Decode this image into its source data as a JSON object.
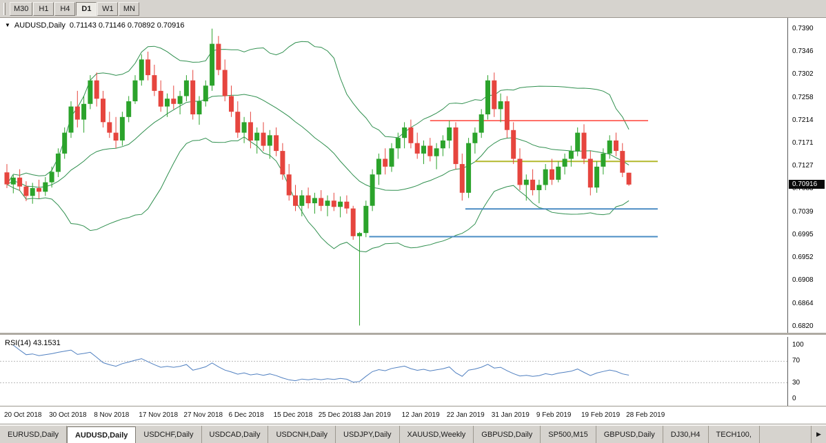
{
  "toolbar": {
    "timeframes": [
      {
        "label": "M30",
        "active": false
      },
      {
        "label": "H1",
        "active": false
      },
      {
        "label": "H4",
        "active": false
      },
      {
        "label": "D1",
        "active": true
      },
      {
        "label": "W1",
        "active": false
      },
      {
        "label": "MN",
        "active": false
      }
    ]
  },
  "chart": {
    "title": "AUDUSD,Daily",
    "ohlc": "0.71143 0.71146 0.70892 0.70916",
    "current_price": "0.70916",
    "price_axis_labels": [
      "0.7390",
      "0.7346",
      "0.7302",
      "0.7258",
      "0.7214",
      "0.7171",
      "0.7127",
      "0.7083",
      "0.7039",
      "0.6995",
      "0.6952",
      "0.6908",
      "0.6864",
      "0.6820"
    ],
    "colors": {
      "up": "#2ba32b",
      "down": "#e6453e",
      "band": "#2f8f4e",
      "red_line": "#ff4036",
      "olive_line": "#b3b82b",
      "blue_line": "#4a8cc4",
      "rsi": "#4f7fc0"
    }
  },
  "chart_data": {
    "type": "candlestick",
    "symbol": "AUDUSD",
    "timeframe": "Daily",
    "y_range": [
      0.682,
      0.74
    ],
    "bollinger": {
      "period": 20,
      "deviation": 2
    },
    "ohlc": [
      [
        0.7115,
        0.7131,
        0.7085,
        0.7092
      ],
      [
        0.7092,
        0.711,
        0.7075,
        0.7105
      ],
      [
        0.7105,
        0.7121,
        0.708,
        0.7088
      ],
      [
        0.7088,
        0.7098,
        0.706,
        0.707
      ],
      [
        0.707,
        0.7095,
        0.7055,
        0.7085
      ],
      [
        0.7085,
        0.7101,
        0.7065,
        0.7078
      ],
      [
        0.7078,
        0.7106,
        0.707,
        0.7096
      ],
      [
        0.7096,
        0.7126,
        0.7086,
        0.7116
      ],
      [
        0.7116,
        0.7161,
        0.7106,
        0.7151
      ],
      [
        0.7151,
        0.7201,
        0.7141,
        0.7191
      ],
      [
        0.7191,
        0.7251,
        0.7181,
        0.7241
      ],
      [
        0.7241,
        0.7271,
        0.7201,
        0.7216
      ],
      [
        0.7216,
        0.7261,
        0.7191,
        0.7246
      ],
      [
        0.7246,
        0.7301,
        0.7236,
        0.7291
      ],
      [
        0.7291,
        0.7306,
        0.7241,
        0.7256
      ],
      [
        0.7256,
        0.7271,
        0.7201,
        0.7211
      ],
      [
        0.7211,
        0.7231,
        0.7181,
        0.7191
      ],
      [
        0.7191,
        0.7221,
        0.7161,
        0.7176
      ],
      [
        0.7176,
        0.7231,
        0.7166,
        0.7221
      ],
      [
        0.7221,
        0.7261,
        0.7211,
        0.7251
      ],
      [
        0.7251,
        0.7301,
        0.7246,
        0.7291
      ],
      [
        0.7291,
        0.7341,
        0.7281,
        0.7331
      ],
      [
        0.7331,
        0.7346,
        0.7291,
        0.7301
      ],
      [
        0.7301,
        0.7321,
        0.7261,
        0.7271
      ],
      [
        0.7271,
        0.7291,
        0.7231,
        0.7241
      ],
      [
        0.7241,
        0.7266,
        0.7221,
        0.7256
      ],
      [
        0.7256,
        0.7281,
        0.7236,
        0.7246
      ],
      [
        0.7246,
        0.7271,
        0.7226,
        0.7261
      ],
      [
        0.7261,
        0.7301,
        0.7251,
        0.7291
      ],
      [
        0.7291,
        0.7311,
        0.7216,
        0.7226
      ],
      [
        0.7226,
        0.7261,
        0.7206,
        0.7251
      ],
      [
        0.7251,
        0.7291,
        0.7241,
        0.7281
      ],
      [
        0.7281,
        0.739,
        0.7271,
        0.7361
      ],
      [
        0.7361,
        0.7376,
        0.7301,
        0.7311
      ],
      [
        0.7311,
        0.7331,
        0.7251,
        0.7261
      ],
      [
        0.7261,
        0.7281,
        0.7221,
        0.7231
      ],
      [
        0.7231,
        0.7251,
        0.7181,
        0.7191
      ],
      [
        0.7191,
        0.7221,
        0.7171,
        0.7211
      ],
      [
        0.7211,
        0.7231,
        0.7161,
        0.7176
      ],
      [
        0.7176,
        0.7201,
        0.7151,
        0.7191
      ],
      [
        0.7191,
        0.7211,
        0.7156,
        0.7166
      ],
      [
        0.7166,
        0.7196,
        0.7141,
        0.7186
      ],
      [
        0.7186,
        0.7201,
        0.7146,
        0.7156
      ],
      [
        0.7156,
        0.7171,
        0.7101,
        0.7111
      ],
      [
        0.7111,
        0.7131,
        0.7061,
        0.7071
      ],
      [
        0.7071,
        0.7091,
        0.7041,
        0.7051
      ],
      [
        0.7051,
        0.7081,
        0.7031,
        0.7071
      ],
      [
        0.7071,
        0.7086,
        0.7046,
        0.7056
      ],
      [
        0.7056,
        0.7076,
        0.7036,
        0.7066
      ],
      [
        0.7066,
        0.7081,
        0.7041,
        0.7051
      ],
      [
        0.7051,
        0.7071,
        0.7031,
        0.7061
      ],
      [
        0.7061,
        0.7076,
        0.7041,
        0.7049
      ],
      [
        0.7049,
        0.7069,
        0.7029,
        0.7059
      ],
      [
        0.7059,
        0.7071,
        0.7036,
        0.7046
      ],
      [
        0.7046,
        0.7051,
        0.6986,
        0.6993
      ],
      [
        0.6993,
        0.7001,
        0.6822,
        0.6999
      ],
      [
        0.6999,
        0.7061,
        0.6991,
        0.7051
      ],
      [
        0.7051,
        0.7121,
        0.7041,
        0.7111
      ],
      [
        0.7111,
        0.7151,
        0.7091,
        0.7141
      ],
      [
        0.7141,
        0.7161,
        0.7111,
        0.7126
      ],
      [
        0.7126,
        0.7171,
        0.7116,
        0.7161
      ],
      [
        0.7161,
        0.7191,
        0.7141,
        0.7181
      ],
      [
        0.7181,
        0.7211,
        0.7161,
        0.7201
      ],
      [
        0.7201,
        0.7216,
        0.7161,
        0.7171
      ],
      [
        0.7171,
        0.7191,
        0.7141,
        0.7151
      ],
      [
        0.7151,
        0.7176,
        0.7131,
        0.7166
      ],
      [
        0.7166,
        0.7181,
        0.7136,
        0.7146
      ],
      [
        0.7146,
        0.7171,
        0.7121,
        0.7161
      ],
      [
        0.7161,
        0.7186,
        0.7146,
        0.7176
      ],
      [
        0.7176,
        0.7214,
        0.7161,
        0.7201
      ],
      [
        0.7201,
        0.7211,
        0.7121,
        0.7131
      ],
      [
        0.7131,
        0.7151,
        0.7061,
        0.7076
      ],
      [
        0.7076,
        0.7181,
        0.7066,
        0.7171
      ],
      [
        0.7171,
        0.7201,
        0.7151,
        0.7191
      ],
      [
        0.7191,
        0.7236,
        0.7181,
        0.7226
      ],
      [
        0.7226,
        0.7301,
        0.7216,
        0.7291
      ],
      [
        0.7291,
        0.7306,
        0.7221,
        0.7236
      ],
      [
        0.7236,
        0.7266,
        0.7211,
        0.7251
      ],
      [
        0.7251,
        0.7261,
        0.7181,
        0.7196
      ],
      [
        0.7196,
        0.7211,
        0.7131,
        0.7141
      ],
      [
        0.7141,
        0.7161,
        0.7081,
        0.7091
      ],
      [
        0.7091,
        0.7111,
        0.7061,
        0.7101
      ],
      [
        0.7101,
        0.7121,
        0.7071,
        0.7081
      ],
      [
        0.7081,
        0.7101,
        0.7056,
        0.7091
      ],
      [
        0.7091,
        0.7131,
        0.7081,
        0.7121
      ],
      [
        0.7121,
        0.7141,
        0.7091,
        0.7101
      ],
      [
        0.7101,
        0.7136,
        0.7096,
        0.7126
      ],
      [
        0.7126,
        0.7151,
        0.7111,
        0.7141
      ],
      [
        0.7141,
        0.7166,
        0.7126,
        0.7156
      ],
      [
        0.7156,
        0.7201,
        0.7146,
        0.7191
      ],
      [
        0.7191,
        0.7207,
        0.7131,
        0.7141
      ],
      [
        0.7141,
        0.7156,
        0.7071,
        0.7086
      ],
      [
        0.7086,
        0.7136,
        0.7076,
        0.7126
      ],
      [
        0.7126,
        0.7161,
        0.7111,
        0.7151
      ],
      [
        0.7151,
        0.7186,
        0.7141,
        0.7176
      ],
      [
        0.7176,
        0.7191,
        0.7146,
        0.7156
      ],
      [
        0.7156,
        0.7171,
        0.7106,
        0.71143
      ],
      [
        0.71143,
        0.71146,
        0.70892,
        0.70916
      ]
    ],
    "horizontal_lines": [
      {
        "color": "#ff4036",
        "price": 0.7214,
        "from_index": 66,
        "to_index": 100,
        "width": 1.5
      },
      {
        "color": "#b3b82b",
        "price": 0.7136,
        "from_index": 73,
        "to_index": 101.5,
        "width": 2
      },
      {
        "color": "#4a8cc4",
        "price": 0.7045,
        "from_index": 71.5,
        "to_index": 101.5,
        "width": 2
      },
      {
        "color": "#4a8cc4",
        "price": 0.6992,
        "from_index": 56.5,
        "to_index": 101.5,
        "width": 2
      }
    ],
    "date_ticks": [
      {
        "label": "20 Oct 2018",
        "index": 0
      },
      {
        "label": "30 Oct 2018",
        "index": 7
      },
      {
        "label": "8 Nov 2018",
        "index": 14
      },
      {
        "label": "17 Nov 2018",
        "index": 21
      },
      {
        "label": "27 Nov 2018",
        "index": 28
      },
      {
        "label": "6 Dec 2018",
        "index": 35
      },
      {
        "label": "15 Dec 2018",
        "index": 42
      },
      {
        "label": "25 Dec 2018",
        "index": 49
      },
      {
        "label": "3 Jan 2019",
        "index": 55
      },
      {
        "label": "12 Jan 2019",
        "index": 62
      },
      {
        "label": "22 Jan 2019",
        "index": 69
      },
      {
        "label": "31 Jan 2019",
        "index": 76
      },
      {
        "label": "9 Feb 2019",
        "index": 83
      },
      {
        "label": "19 Feb 2019",
        "index": 90
      },
      {
        "label": "28 Feb 2019",
        "index": 97
      }
    ]
  },
  "rsi": {
    "label": "RSI(14) 43.1531",
    "period": 14,
    "levels": [
      "100",
      "70",
      "30",
      "0"
    ]
  },
  "tabs": [
    {
      "label": "EURUSD,Daily",
      "active": false
    },
    {
      "label": "AUDUSD,Daily",
      "active": true
    },
    {
      "label": "USDCHF,Daily",
      "active": false
    },
    {
      "label": "USDCAD,Daily",
      "active": false
    },
    {
      "label": "USDCNH,Daily",
      "active": false
    },
    {
      "label": "USDJPY,Daily",
      "active": false
    },
    {
      "label": "XAUUSD,Weekly",
      "active": false
    },
    {
      "label": "GBPUSD,Daily",
      "active": false
    },
    {
      "label": "SP500,M15",
      "active": false
    },
    {
      "label": "GBPUSD,Daily",
      "active": false
    },
    {
      "label": "DJ30,H4",
      "active": false
    },
    {
      "label": "TECH100,",
      "active": false
    }
  ],
  "tab_scroll_arrow": "▶",
  "dropdown_triangle": "▼"
}
